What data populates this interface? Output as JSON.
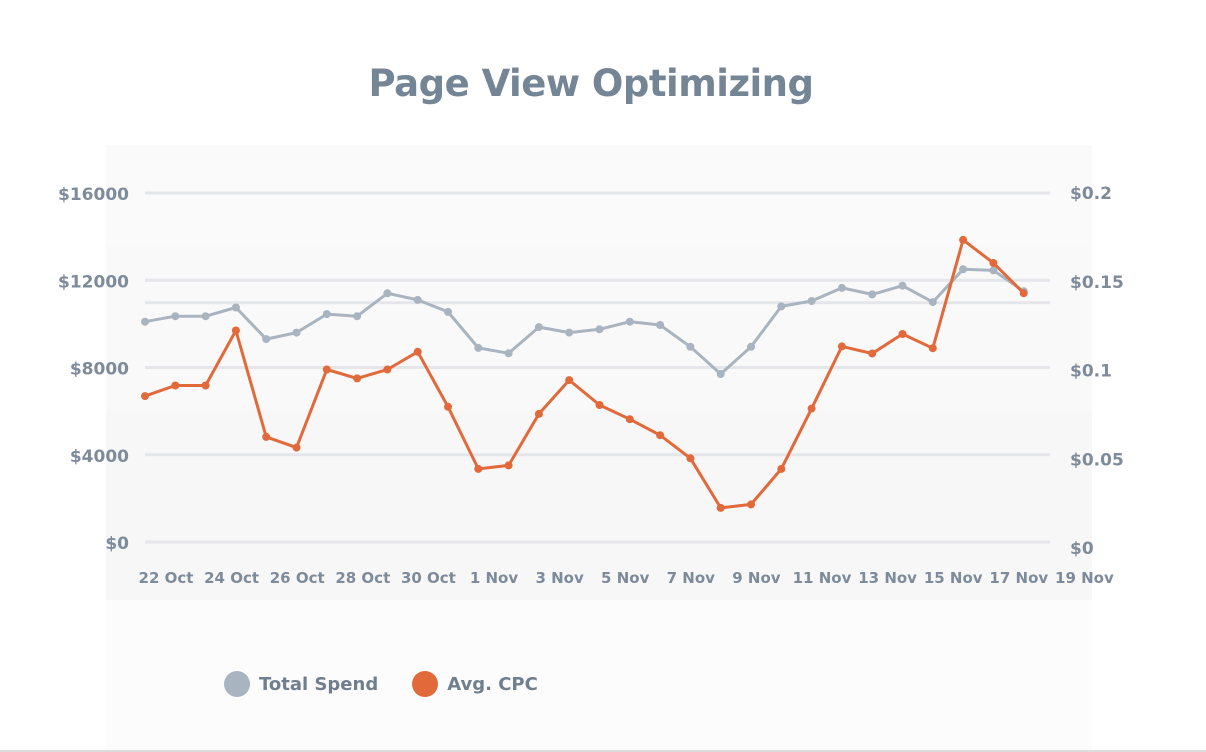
{
  "colors": {
    "title": "#748596",
    "total_spend": "#a9b4c1",
    "avg_cpc": "#e2693a",
    "grid": "#e4e6ea",
    "tick": "#7d8b9b"
  },
  "chart_data": {
    "type": "line",
    "title": "Page View Optimizing",
    "x_tick_labels": [
      "22 Oct",
      "24 Oct",
      "26 Oct",
      "28 Oct",
      "30 Oct",
      "1 Nov",
      "3 Nov",
      "5 Nov",
      "7 Nov",
      "9 Nov",
      "11 Nov",
      "13 Nov",
      "15 Nov",
      "17 Nov",
      "19 Nov"
    ],
    "x": [
      "21 Oct",
      "22 Oct",
      "23 Oct",
      "24 Oct",
      "25 Oct",
      "26 Oct",
      "27 Oct",
      "28 Oct",
      "29 Oct",
      "30 Oct",
      "31 Oct",
      "1 Nov",
      "2 Nov",
      "3 Nov",
      "4 Nov",
      "5 Nov",
      "6 Nov",
      "7 Nov",
      "8 Nov",
      "9 Nov",
      "10 Nov",
      "11 Nov",
      "12 Nov",
      "13 Nov",
      "14 Nov",
      "15 Nov",
      "16 Nov",
      "17 Nov",
      "18 Nov",
      "19 Nov"
    ],
    "y_left": {
      "ticks": [
        0,
        4000,
        8000,
        12000,
        16000
      ],
      "tick_labels": [
        "$0",
        "$4000",
        "$8000",
        "$12000",
        "$16000"
      ],
      "ylim": [
        0,
        16000
      ]
    },
    "y_right": {
      "ticks": [
        0,
        0.05,
        0.1,
        0.15,
        0.2
      ],
      "tick_labels": [
        "$0",
        "$0.05",
        "$0.1",
        "$0.15",
        "$0.2"
      ],
      "ylim": [
        0,
        0.2
      ]
    },
    "grid": true,
    "legend_position": "bottom-left",
    "series": [
      {
        "name": "Total Spend",
        "axis": "left",
        "values": [
          10100,
          10350,
          10350,
          10750,
          9300,
          9600,
          10450,
          10350,
          11400,
          11100,
          10550,
          8900,
          8650,
          9850,
          9600,
          9750,
          10100,
          9950,
          8950,
          7700,
          8950,
          10800,
          11050,
          11650,
          11350,
          11750,
          11000,
          12500,
          12450,
          11500
        ]
      },
      {
        "name": "Avg. CPC",
        "axis": "right",
        "values": [
          0.085,
          0.091,
          0.091,
          0.122,
          0.062,
          0.056,
          0.1,
          0.095,
          0.1,
          0.11,
          0.079,
          0.044,
          0.046,
          0.075,
          0.094,
          0.08,
          0.072,
          0.063,
          0.05,
          0.022,
          0.024,
          0.044,
          0.078,
          0.113,
          0.109,
          0.12,
          0.112,
          0.173,
          0.16,
          0.143
        ]
      }
    ]
  }
}
